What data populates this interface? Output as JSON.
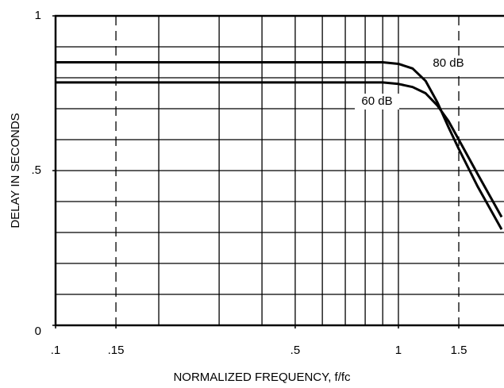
{
  "chart_data": {
    "type": "line",
    "x_label": "NORMALIZED FREQUENCY, f/fc",
    "y_label": "DELAY IN SECONDS",
    "xlog": true,
    "xlim": [
      0.1,
      2
    ],
    "ylim": [
      0,
      1
    ],
    "xticks": [
      {
        "value": 0.1,
        "label": ".1"
      },
      {
        "value": 0.15,
        "label": ".15"
      },
      {
        "value": 0.5,
        "label": ".5"
      },
      1,
      {
        "value": 1.5,
        "label": "1.5"
      }
    ],
    "yticks": [
      0,
      {
        "value": 0.5,
        "label": ".5"
      },
      1
    ],
    "xgrid": [
      0.2,
      0.3,
      0.4,
      0.5,
      0.6,
      0.7,
      0.8,
      0.9,
      1
    ],
    "xgrid_dashed": [
      0.15,
      1.5
    ],
    "ygrid": [
      0.1,
      0.2,
      0.3,
      0.4,
      0.5,
      0.6,
      0.7,
      0.8,
      0.9
    ],
    "x": [
      0.1,
      0.5,
      0.9,
      1,
      1.1,
      1.2,
      1.3,
      1.4,
      1.5,
      1.7,
      2
    ],
    "series": [
      {
        "name": "80 dB",
        "color": "#000000",
        "values": [
          0.85,
          0.85,
          0.85,
          0.845,
          0.83,
          0.79,
          0.72,
          0.64,
          0.57,
          0.45,
          0.31
        ]
      },
      {
        "name": "60 dB",
        "color": "#000000",
        "values": [
          0.785,
          0.785,
          0.785,
          0.78,
          0.77,
          0.75,
          0.71,
          0.66,
          0.6,
          0.49,
          0.35
        ]
      }
    ]
  }
}
